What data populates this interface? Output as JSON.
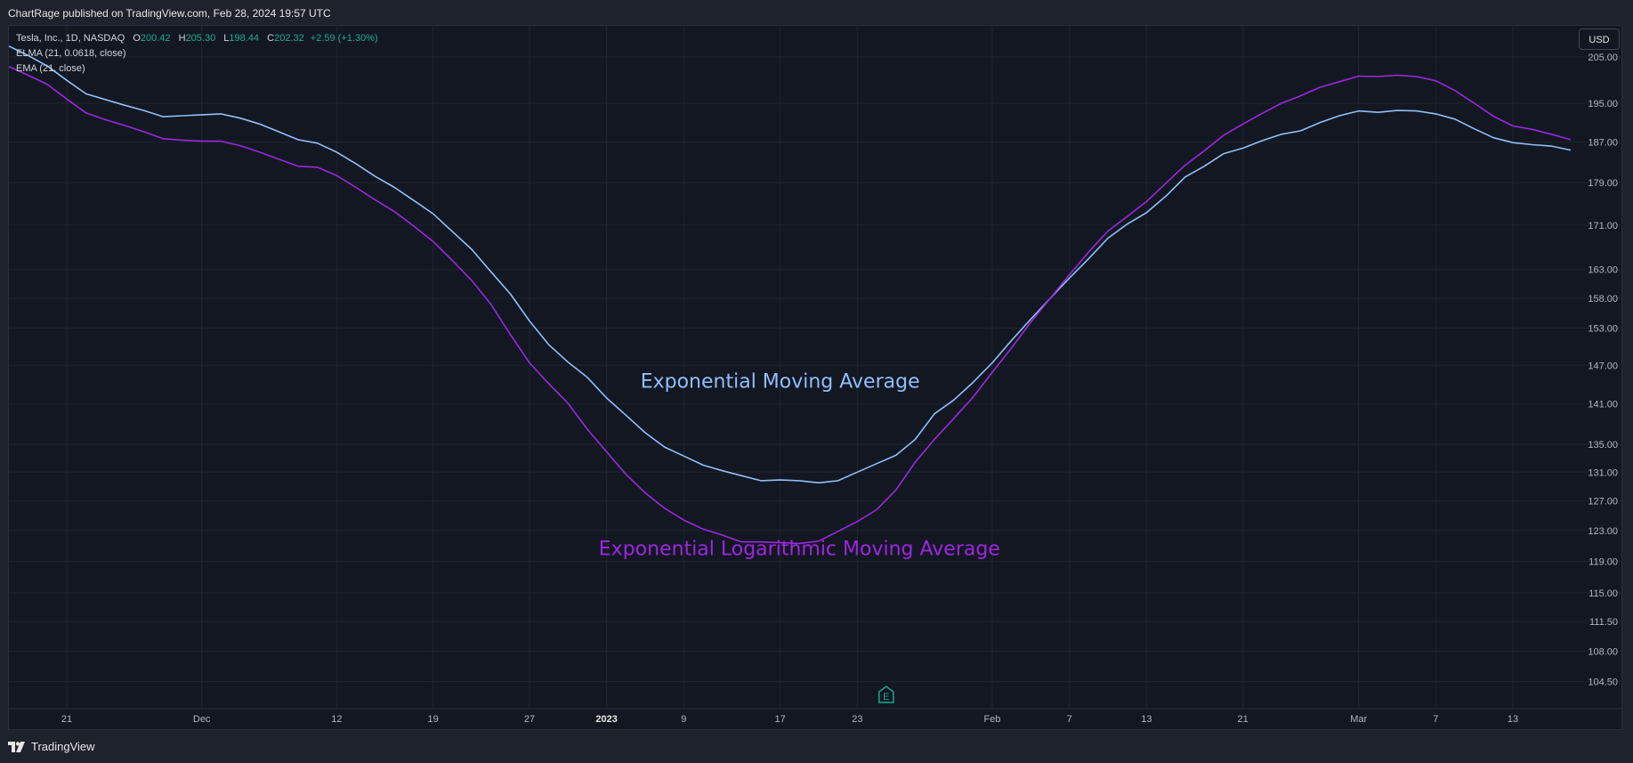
{
  "header": {
    "published": "ChartRage published on TradingView.com, Feb 28, 2024 19:57 UTC"
  },
  "legend": {
    "symbol": "Tesla, Inc., 1D, NASDAQ",
    "o_label": "O",
    "o_value": "200.42",
    "h_label": "H",
    "h_value": "205.30",
    "l_label": "L",
    "l_value": "198.44",
    "c_label": "C",
    "c_value": "202.32",
    "change": "+2.59 (+1.30%)",
    "indicator1": "ELMA (21, 0.0618, close)",
    "indicator2": "EMA (21, close)"
  },
  "currency_button": "USD",
  "footer": {
    "brand": "TradingView",
    "logo_icon": "tradingview-logo-icon"
  },
  "earnings_marker": {
    "label": "E",
    "icon": "earnings-icon"
  },
  "colors": {
    "ema": "#90bff9",
    "elma": "#9c27e0",
    "grid": "#1f2430",
    "axis_text": "#b2b5be",
    "positive": "#22ab94"
  },
  "chart_data": {
    "type": "line",
    "title": "Tesla, Inc., 1D, NASDAQ",
    "xlabel": "",
    "ylabel": "",
    "y_scale": "log",
    "ylim": [
      101.5,
      212
    ],
    "grid": true,
    "y_ticks": [
      "205.00",
      "195.00",
      "187.00",
      "179.00",
      "171.00",
      "163.00",
      "158.00",
      "153.00",
      "147.00",
      "141.00",
      "135.00",
      "131.00",
      "127.00",
      "123.00",
      "119.00",
      "115.00",
      "111.50",
      "108.00",
      "104.50"
    ],
    "x_ticks": [
      "21",
      "Dec",
      "12",
      "19",
      "27",
      "2023",
      "9",
      "17",
      "23",
      "Feb",
      "7",
      "13",
      "21",
      "Mar",
      "7",
      "13"
    ],
    "x_tick_index": [
      3,
      10,
      17,
      22,
      27,
      31,
      35,
      40,
      44,
      51,
      55,
      59,
      64,
      70,
      74,
      78
    ],
    "annotations": [
      {
        "text": "Exponential Moving Average",
        "series": "EMA (21, close)",
        "at_index": 40,
        "at_value": 143.5
      },
      {
        "text": "Exponential Logarithmic Moving Average",
        "series": "ELMA (21, 0.0618, close)",
        "at_index": 41,
        "at_value": 119.8
      }
    ],
    "series": [
      {
        "name": "EMA (21, close)",
        "color": "#90bff9",
        "values": [
          207.4,
          205.3,
          203.0,
          199.9,
          197.0,
          195.8,
          194.6,
          193.5,
          192.2,
          192.4,
          192.6,
          192.8,
          191.9,
          190.7,
          189.1,
          187.5,
          186.8,
          185.0,
          182.7,
          180.2,
          178.1,
          175.6,
          173.1,
          169.8,
          166.6,
          162.6,
          158.8,
          154.2,
          150.3,
          147.5,
          145.1,
          141.9,
          139.3,
          136.7,
          134.6,
          133.3,
          132.0,
          131.2,
          130.5,
          129.8,
          129.9,
          129.8,
          129.5,
          129.8,
          131.0,
          132.2,
          133.4,
          135.7,
          139.5,
          141.6,
          144.3,
          147.4,
          151.0,
          154.5,
          158.0,
          161.5,
          164.9,
          168.6,
          171.2,
          173.3,
          176.4,
          180.1,
          182.2,
          184.7,
          185.8,
          187.3,
          188.6,
          189.3,
          191.0,
          192.4,
          193.4,
          193.1,
          193.5,
          193.4,
          192.8,
          191.7,
          189.7,
          187.9,
          186.9,
          186.5,
          186.2,
          185.4
        ]
      },
      {
        "name": "ELMA (21, 0.0618, close)",
        "color": "#9c27e0",
        "values": [
          202.9,
          201.0,
          199.0,
          195.9,
          193.0,
          191.6,
          190.4,
          189.1,
          187.7,
          187.4,
          187.2,
          187.2,
          186.3,
          185.0,
          183.6,
          182.2,
          182.0,
          180.4,
          178.1,
          175.7,
          173.5,
          170.8,
          168.0,
          164.6,
          161.1,
          157.0,
          152.0,
          147.4,
          144.1,
          141.1,
          137.2,
          133.9,
          130.7,
          128.1,
          126.0,
          124.4,
          123.2,
          122.4,
          121.5,
          121.5,
          121.4,
          121.3,
          121.6,
          122.9,
          124.2,
          125.8,
          128.5,
          132.4,
          135.7,
          138.8,
          142.0,
          145.9,
          149.8,
          154.0,
          158.0,
          162.1,
          166.1,
          169.9,
          172.6,
          175.4,
          178.9,
          182.4,
          185.3,
          188.4,
          190.7,
          192.9,
          195.0,
          196.6,
          198.4,
          199.6,
          200.8,
          200.7,
          201.0,
          200.7,
          199.8,
          197.7,
          195.0,
          192.3,
          190.3,
          189.6,
          188.6,
          187.5
        ]
      }
    ]
  }
}
